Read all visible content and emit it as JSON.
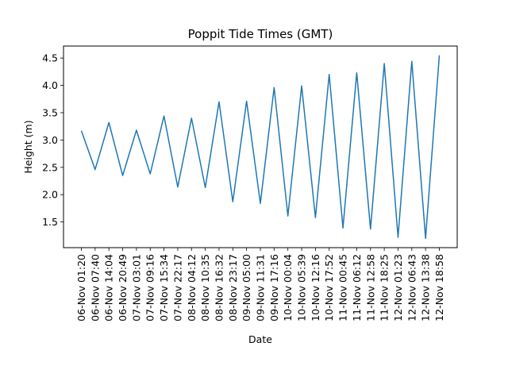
{
  "chart_data": {
    "type": "line",
    "title": "Poppit Tide Times (GMT)",
    "xlabel": "Date",
    "ylabel": "Height (m)",
    "categories": [
      "06-Nov 01:20",
      "06-Nov 07:40",
      "06-Nov 14:04",
      "06-Nov 20:49",
      "07-Nov 03:01",
      "07-Nov 09:16",
      "07-Nov 15:34",
      "07-Nov 22:17",
      "08-Nov 04:12",
      "08-Nov 10:35",
      "08-Nov 16:32",
      "08-Nov 23:17",
      "09-Nov 05:00",
      "09-Nov 11:31",
      "09-Nov 17:16",
      "10-Nov 00:04",
      "10-Nov 05:39",
      "10-Nov 12:16",
      "10-Nov 17:52",
      "11-Nov 00:45",
      "11-Nov 06:12",
      "11-Nov 12:58",
      "11-Nov 18:25",
      "12-Nov 01:23",
      "12-Nov 06:43",
      "12-Nov 13:38",
      "12-Nov 18:58"
    ],
    "series": [
      {
        "values": [
          3.17,
          2.46,
          3.32,
          2.35,
          3.18,
          2.38,
          3.44,
          2.14,
          3.4,
          2.13,
          3.7,
          1.87,
          3.71,
          1.84,
          3.96,
          1.61,
          3.99,
          1.58,
          4.2,
          1.39,
          4.23,
          1.37,
          4.4,
          1.22,
          4.44,
          1.2,
          4.55
        ],
        "color": "#1f77b4"
      }
    ],
    "yticks": [
      "1.5",
      "2.0",
      "2.5",
      "3.0",
      "3.5",
      "4.0",
      "4.5"
    ],
    "ylim": [
      1.03,
      4.72
    ],
    "grid": false,
    "legend": "none"
  }
}
